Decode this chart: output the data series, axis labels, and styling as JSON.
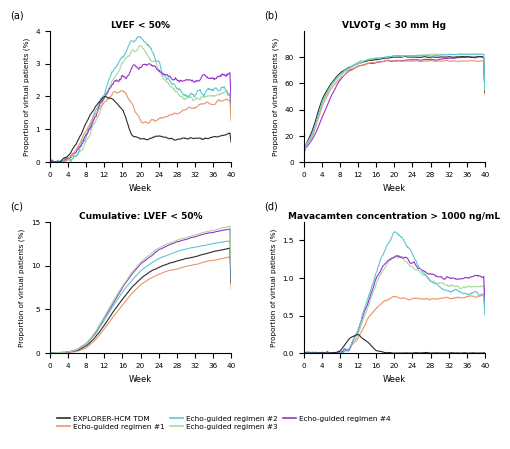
{
  "colors": {
    "explorer": "#2b2b2b",
    "echo1": "#e8956d",
    "echo2": "#5bc8d0",
    "echo3": "#a8d8a0",
    "echo4": "#9933cc"
  },
  "legend_labels": [
    "EXPLORER-HCM TDM",
    "Echo-guided regimen #1",
    "Echo-guided regimen #2",
    "Echo-guided regimen #3",
    "Echo-guided regimen #4"
  ],
  "titles": {
    "a": "LVEF < 50%",
    "b": "VLVOTg < 30 mm Hg",
    "c": "Cumulative: LVEF < 50%",
    "d": "Mavacamten concentration > 1000 ng/mL"
  },
  "panel_labels": [
    "(a)",
    "(b)",
    "(c)",
    "(d)"
  ],
  "xlabel": "Week",
  "ylabel": "Proportion of virtual patients (%)",
  "xticks": [
    0,
    4,
    8,
    12,
    16,
    20,
    24,
    28,
    32,
    36,
    40
  ],
  "background_color": "#ffffff"
}
